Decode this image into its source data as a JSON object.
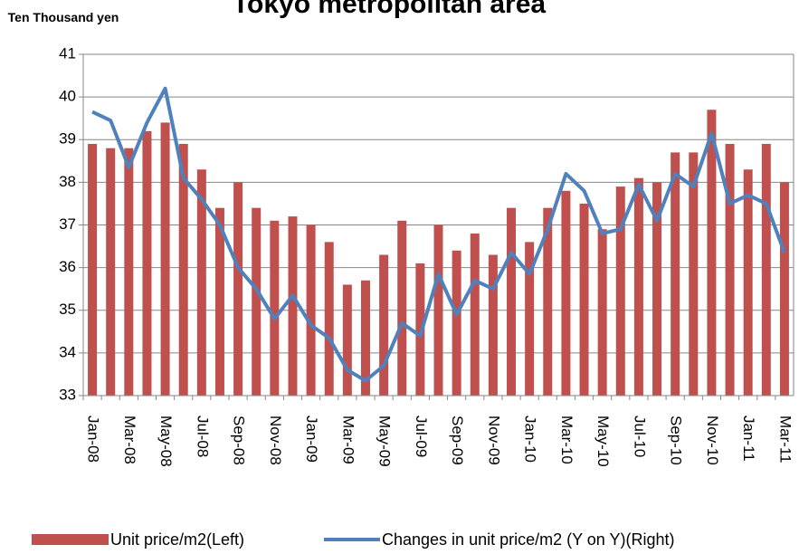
{
  "chart_data": {
    "type": "bar_line",
    "title": "Tokyo metropolitan area",
    "y_label": "Ten Thousand yen",
    "categories": [
      "Jan-08",
      null,
      "Mar-08",
      null,
      "May-08",
      null,
      "Jul-08",
      null,
      "Sep-08",
      null,
      "Nov-08",
      null,
      "Jan-09",
      null,
      "Mar-09",
      null,
      "May-09",
      null,
      "Jul-09",
      null,
      "Sep-09",
      null,
      "Nov-09",
      null,
      "Jan-10",
      null,
      "Mar-10",
      null,
      "May-10",
      null,
      "Jul-10",
      null,
      "Sep-10",
      null,
      "Nov-10",
      null,
      "Jan-11",
      null,
      "Mar-11"
    ],
    "series": [
      {
        "name": "Unit price/m2(Left)",
        "type": "bar",
        "color": "#c0504d",
        "values": [
          38.9,
          38.8,
          38.8,
          39.2,
          39.4,
          38.9,
          38.3,
          37.4,
          38.0,
          37.4,
          37.1,
          37.2,
          37.0,
          36.6,
          35.6,
          35.7,
          36.3,
          37.1,
          36.1,
          37.0,
          36.4,
          36.8,
          36.3,
          37.4,
          36.6,
          37.4,
          37.8,
          37.5,
          36.9,
          37.9,
          38.1,
          38.0,
          38.7,
          38.7,
          39.7,
          38.9,
          38.3,
          38.9,
          38.0
        ]
      },
      {
        "name": "Changes in unit price/m2 (Y on Y)(Right)",
        "type": "line",
        "color": "#4f81bd",
        "axis": "y2",
        "values": [
          39.65,
          39.45,
          38.35,
          39.4,
          40.2,
          38.1,
          37.6,
          37.0,
          36.0,
          35.5,
          34.8,
          35.35,
          34.65,
          34.35,
          33.6,
          33.35,
          33.7,
          34.7,
          34.4,
          35.85,
          34.9,
          35.7,
          35.5,
          36.35,
          35.85,
          36.9,
          38.2,
          37.8,
          36.8,
          36.9,
          37.95,
          37.1,
          38.2,
          37.9,
          39.15,
          37.5,
          37.7,
          37.5,
          36.35
        ]
      }
    ],
    "ylim": [
      33,
      41
    ],
    "yticks": [
      33,
      34,
      35,
      36,
      37,
      38,
      39,
      40,
      41
    ],
    "y2lim": [
      33,
      41
    ],
    "grid": true,
    "legend": "bottom"
  }
}
